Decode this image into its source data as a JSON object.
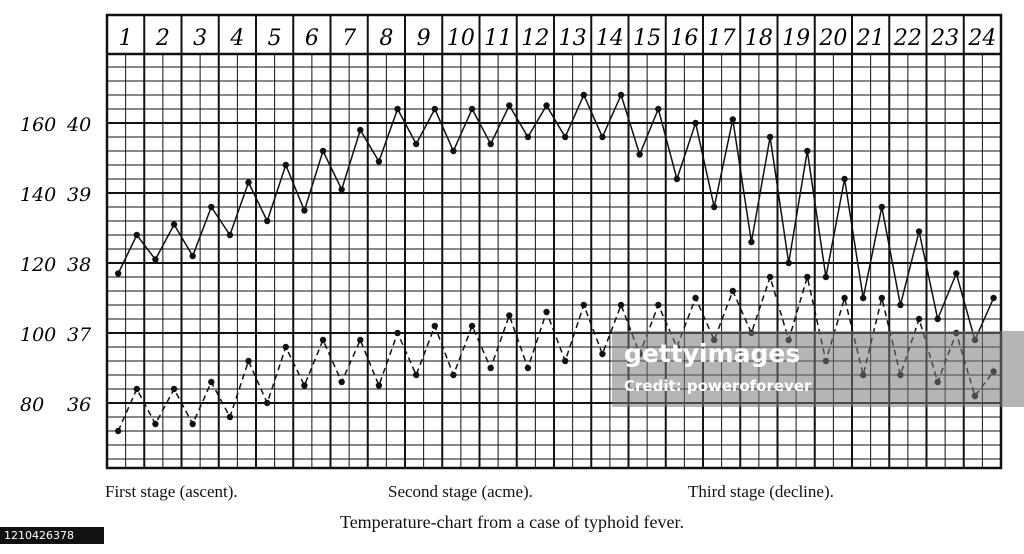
{
  "chart_data": {
    "type": "line",
    "title": "Temperature-chart from a case of typhoid fever.",
    "x_labels": [
      "1",
      "2",
      "3",
      "4",
      "5",
      "6",
      "7",
      "8",
      "9",
      "10",
      "11",
      "12",
      "13",
      "14",
      "15",
      "16",
      "17",
      "18",
      "19",
      "20",
      "21",
      "22",
      "23",
      "24"
    ],
    "y_labels_pulse": [
      "160",
      "140",
      "120",
      "100",
      "80"
    ],
    "y_labels_temp": [
      "40",
      "39",
      "38",
      "37",
      "36"
    ],
    "ylim_temp": [
      35,
      41.2
    ],
    "grid": true,
    "series": [
      {
        "style": "solid",
        "x": [
          0.3,
          0.8,
          1.3,
          1.8,
          2.3,
          2.8,
          3.3,
          3.8,
          4.3,
          4.8,
          5.3,
          5.8,
          6.3,
          6.8,
          7.3,
          7.8,
          8.3,
          8.8,
          9.3,
          9.8,
          10.3,
          10.8,
          11.3,
          11.8,
          12.3,
          12.8,
          13.3,
          13.8,
          14.3,
          14.8,
          15.3,
          15.8,
          16.3,
          16.8,
          17.3,
          17.8,
          18.3,
          18.8,
          19.3,
          19.8,
          20.3,
          20.8,
          21.3,
          21.8,
          22.3,
          22.8,
          23.3,
          23.8
        ],
        "values": [
          37.85,
          38.4,
          38.05,
          38.55,
          38.1,
          38.8,
          38.4,
          39.15,
          38.6,
          39.4,
          38.75,
          39.6,
          39.05,
          39.9,
          39.45,
          40.2,
          39.7,
          40.2,
          39.6,
          40.2,
          39.7,
          40.25,
          39.8,
          40.25,
          39.8,
          40.4,
          39.8,
          40.4,
          39.55,
          40.2,
          39.2,
          40.0,
          38.8,
          40.05,
          38.3,
          39.8,
          38.0,
          39.6,
          37.8,
          39.2,
          37.5,
          38.8,
          37.4,
          38.45,
          37.2,
          37.85,
          36.9,
          37.5
        ]
      },
      {
        "style": "dashed",
        "x": [
          0.3,
          0.8,
          1.3,
          1.8,
          2.3,
          2.8,
          3.3,
          3.8,
          4.3,
          4.8,
          5.3,
          5.8,
          6.3,
          6.8,
          7.3,
          7.8,
          8.3,
          8.8,
          9.3,
          9.8,
          10.3,
          10.8,
          11.3,
          11.8,
          12.3,
          12.8,
          13.3,
          13.8,
          14.3,
          14.8,
          15.3,
          15.8,
          16.3,
          16.8,
          17.3,
          17.8,
          18.3,
          18.8,
          19.3,
          19.8,
          20.3,
          20.8,
          21.3,
          21.8,
          22.3,
          22.8,
          23.3,
          23.8
        ],
        "values": [
          35.6,
          36.2,
          35.7,
          36.2,
          35.7,
          36.3,
          35.8,
          36.6,
          36.0,
          36.8,
          36.25,
          36.9,
          36.3,
          36.9,
          36.25,
          37.0,
          36.4,
          37.1,
          36.4,
          37.1,
          36.5,
          37.25,
          36.5,
          37.3,
          36.6,
          37.4,
          36.7,
          37.4,
          36.7,
          37.4,
          36.8,
          37.5,
          36.9,
          37.6,
          37.0,
          37.8,
          36.9,
          37.8,
          36.6,
          37.5,
          36.4,
          37.5,
          36.4,
          37.2,
          36.3,
          37.0,
          36.1,
          36.45
        ]
      }
    ]
  },
  "stages": [
    "First stage (ascent).",
    "Second stage (acme).",
    "Third stage (decline)."
  ],
  "caption": "Temperature-chart from a case of typhoid fever.",
  "image_id": "1210426378",
  "watermark": {
    "brand": "gettyimages",
    "credit": "Credit: poweroforever"
  }
}
